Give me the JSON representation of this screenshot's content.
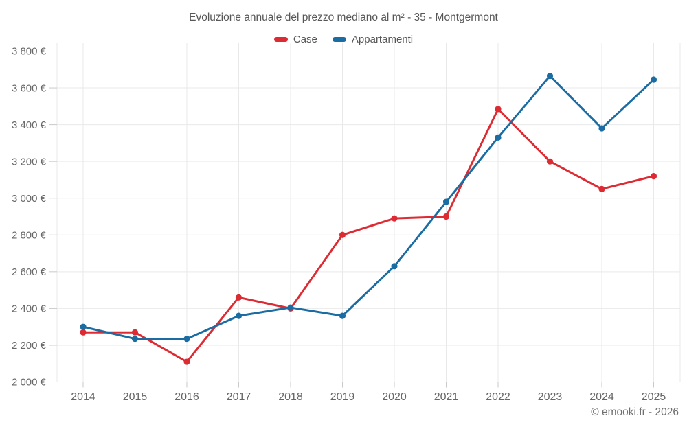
{
  "chart_data": {
    "type": "line",
    "title": "Evoluzione annuale del prezzo mediano al m² - 35 - Montgermont",
    "categories": [
      "2014",
      "2015",
      "2016",
      "2017",
      "2018",
      "2019",
      "2020",
      "2021",
      "2022",
      "2023",
      "2024",
      "2025"
    ],
    "series": [
      {
        "name": "Case",
        "color": "#dd2b33",
        "values": [
          2270,
          2270,
          2110,
          2460,
          2400,
          2800,
          2890,
          2900,
          3485,
          3200,
          3050,
          3120
        ]
      },
      {
        "name": "Appartamenti",
        "color": "#1a6ca3",
        "values": [
          2300,
          2235,
          2235,
          2360,
          2405,
          2360,
          2630,
          2980,
          3330,
          3665,
          3380,
          3645
        ]
      }
    ],
    "xlabel": "",
    "ylabel": "",
    "ylim": [
      2000,
      3800
    ],
    "ytick_values": [
      2000,
      2200,
      2400,
      2600,
      2800,
      3000,
      3200,
      3400,
      3600,
      3800
    ],
    "ytick_labels": [
      "2 000 €",
      "2 200 €",
      "2 400 €",
      "2 600 €",
      "2 800 €",
      "3 000 €",
      "3 200 €",
      "3 400 €",
      "3 600 €",
      "3 800 €"
    ],
    "grid": true,
    "legend_position": "top",
    "colors": {
      "grid": "#e9e9e9",
      "axis": "#c9c9c9",
      "tick_text": "#666666",
      "title_text": "#575757",
      "footer_text": "#6f6f6f"
    }
  },
  "footer": "© emooki.fr - 2026"
}
